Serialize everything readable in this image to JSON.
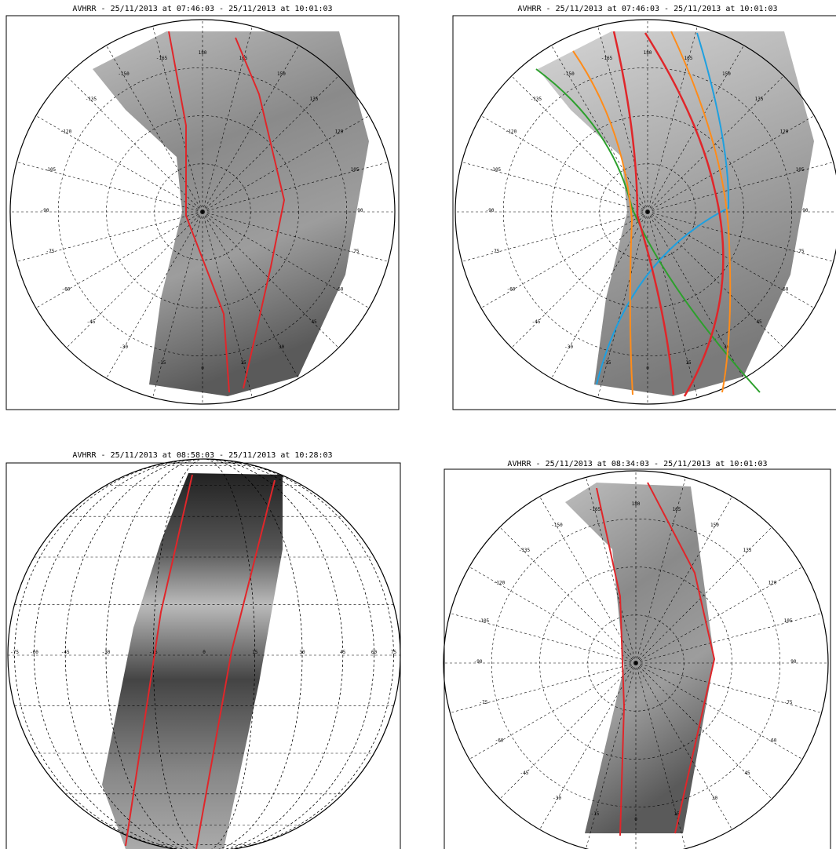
{
  "panels": [
    {
      "title": "AVHRR - 25/11/2013 at 07:46:03 - 25/11/2013 at 10:01:03",
      "longitude_labels": [
        "180",
        "165",
        "150",
        "135",
        "120",
        "105",
        "90",
        "-75",
        "-60",
        "45",
        "30",
        "15",
        "0",
        "-15",
        "-30",
        "-45",
        "-60",
        "-75",
        "-90",
        "-105",
        "-120",
        "-135",
        "-150",
        "-165"
      ]
    },
    {
      "title": "AVHRR - 25/11/2013 at 07:46:03 - 25/11/2013 at 10:01:03",
      "longitude_labels": [
        "180",
        "165",
        "150",
        "135",
        "120",
        "105",
        "90",
        "-75",
        "-60",
        "45",
        "30",
        "15",
        "0",
        "-15",
        "-30",
        "-45",
        "-60",
        "-75",
        "-90",
        "-105",
        "-120",
        "-135",
        "-150",
        "-165"
      ]
    },
    {
      "title": "AVHRR - 25/11/2013 at 08:58:03 - 25/11/2013 at 10:28:03",
      "longitude_labels": [
        "-75",
        "-60",
        "-45",
        "-30",
        "-15",
        "0",
        "15",
        "30",
        "45",
        "60",
        "75"
      ]
    },
    {
      "title": "AVHRR - 25/11/2013 at 08:34:03 - 25/11/2013 at 10:01:03",
      "longitude_labels": [
        "180",
        "165",
        "150",
        "135",
        "120",
        "105",
        "90",
        "-75",
        "-60",
        "45",
        "30",
        "15",
        "0",
        "-15",
        "-30",
        "-45",
        "-60",
        "-75",
        "-90",
        "-105",
        "-120",
        "-135",
        "-150",
        "-165"
      ]
    }
  ]
}
